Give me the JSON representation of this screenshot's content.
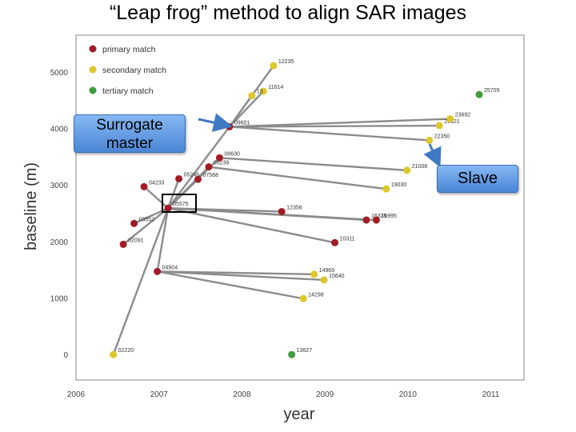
{
  "page": {
    "title": "“Leap frog” method to align SAR images"
  },
  "callouts": {
    "surrogate": "Surrogate master",
    "slave": "Slave"
  },
  "chart_data": {
    "type": "scatter",
    "xlabel": "year",
    "ylabel": "baseline (m)",
    "xlim": [
      2006,
      2011.4
    ],
    "ylim": [
      -450,
      5650
    ],
    "xticks": [
      2006,
      2007,
      2008,
      2009,
      2010,
      2011
    ],
    "yticks": [
      0,
      1000,
      2000,
      3000,
      4000,
      5000
    ],
    "grid": false,
    "legend_position": "top-left",
    "legend": [
      {
        "name": "primary match",
        "color": "#a01c26"
      },
      {
        "name": "secondary match",
        "color": "#dcc72c"
      },
      {
        "name": "tertiary match",
        "color": "#3d9d3d"
      }
    ],
    "points": [
      {
        "id": "02220",
        "x": 2006.45,
        "y": 0,
        "cls": "secondary"
      },
      {
        "id": "02091",
        "x": 2006.57,
        "y": 1950,
        "cls": "primary"
      },
      {
        "id": "03552",
        "x": 2006.7,
        "y": 2320,
        "cls": "primary"
      },
      {
        "id": "04233",
        "x": 2006.82,
        "y": 2970,
        "cls": "primary"
      },
      {
        "id": "04904",
        "x": 2006.98,
        "y": 1470,
        "cls": "primary"
      },
      {
        "id": "05575",
        "x": 2007.11,
        "y": 2590,
        "cls": "primary"
      },
      {
        "id": "05246",
        "x": 2007.24,
        "y": 3110,
        "cls": "primary"
      },
      {
        "id": "07568",
        "x": 2007.47,
        "y": 3100,
        "cls": "primary"
      },
      {
        "id": "06239",
        "x": 2007.6,
        "y": 3320,
        "cls": "primary"
      },
      {
        "id": "08630",
        "x": 2007.73,
        "y": 3480,
        "cls": "primary"
      },
      {
        "id": "09601",
        "x": 2007.85,
        "y": 4030,
        "cls": "primary"
      },
      {
        "id": "12235",
        "x": 2008.38,
        "y": 5110,
        "cls": "secondary"
      },
      {
        "id": "11614",
        "x": 2008.26,
        "y": 4660,
        "cls": "secondary"
      },
      {
        "id": "13",
        "x": 2008.12,
        "y": 4580,
        "cls": "secondary"
      },
      {
        "id": "12356",
        "x": 2008.48,
        "y": 2530,
        "cls": "primary"
      },
      {
        "id": "10311",
        "x": 2009.12,
        "y": 1980,
        "cls": "primary"
      },
      {
        "id": "16325",
        "x": 2009.5,
        "y": 2380,
        "cls": "primary"
      },
      {
        "id": "16995",
        "x": 2009.62,
        "y": 2380,
        "cls": "primary"
      },
      {
        "id": "14969",
        "x": 2008.87,
        "y": 1420,
        "cls": "secondary"
      },
      {
        "id": "15640",
        "x": 2008.99,
        "y": 1320,
        "cls": "secondary"
      },
      {
        "id": "14298",
        "x": 2008.74,
        "y": 990,
        "cls": "secondary"
      },
      {
        "id": "19030",
        "x": 2009.74,
        "y": 2930,
        "cls": "secondary"
      },
      {
        "id": "21008",
        "x": 2009.99,
        "y": 3260,
        "cls": "secondary"
      },
      {
        "id": "22350",
        "x": 2010.26,
        "y": 3790,
        "cls": "secondary"
      },
      {
        "id": "23021",
        "x": 2010.38,
        "y": 4050,
        "cls": "secondary"
      },
      {
        "id": "23692",
        "x": 2010.51,
        "y": 4170,
        "cls": "secondary"
      },
      {
        "id": "25705",
        "x": 2010.86,
        "y": 4600,
        "cls": "tertiary"
      },
      {
        "id": "13627",
        "x": 2008.6,
        "y": 0,
        "cls": "tertiary"
      }
    ],
    "links": [
      [
        "05575",
        "02220"
      ],
      [
        "05575",
        "04904"
      ],
      [
        "05575",
        "02091"
      ],
      [
        "05575",
        "03552"
      ],
      [
        "05575",
        "04233"
      ],
      [
        "05575",
        "05246"
      ],
      [
        "05575",
        "07568"
      ],
      [
        "05575",
        "06239"
      ],
      [
        "05575",
        "08630"
      ],
      [
        "05575",
        "09601"
      ],
      [
        "05575",
        "12356"
      ],
      [
        "05575",
        "10311"
      ],
      [
        "05575",
        "16325"
      ],
      [
        "05575",
        "16995"
      ],
      [
        "09601",
        "12235"
      ],
      [
        "09601",
        "11614"
      ],
      [
        "09601",
        "13"
      ],
      [
        "09601",
        "23692"
      ],
      [
        "09601",
        "23021"
      ],
      [
        "09601",
        "22350"
      ],
      [
        "04904",
        "14969"
      ],
      [
        "04904",
        "15640"
      ],
      [
        "04904",
        "14298"
      ],
      [
        "08630",
        "21008"
      ],
      [
        "06239",
        "19030"
      ]
    ]
  }
}
